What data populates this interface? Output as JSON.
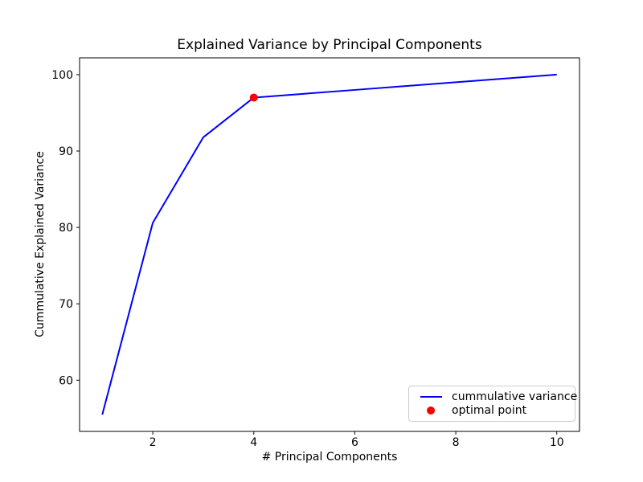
{
  "chart_data": {
    "type": "line",
    "title": "Explained Variance by Principal Components",
    "xlabel": "# Principal Components",
    "ylabel": "Cummulative Explained Variance",
    "x": [
      1,
      2,
      3,
      4,
      5,
      6,
      7,
      8,
      9,
      10
    ],
    "series": [
      {
        "name": "cummulative variance",
        "type": "line",
        "color": "#0000ff",
        "values": [
          55.5,
          80.6,
          91.8,
          97.0,
          97.5,
          98.0,
          98.5,
          99.0,
          99.5,
          100.0
        ]
      },
      {
        "name": "optimal point",
        "type": "scatter",
        "color": "#ff0000",
        "points": [
          {
            "x": 4,
            "y": 97.0
          }
        ]
      }
    ],
    "xlim": [
      0.55,
      10.45
    ],
    "ylim": [
      53.3,
      102.2
    ],
    "xticks": [
      2,
      4,
      6,
      8,
      10
    ],
    "yticks": [
      60,
      70,
      80,
      90,
      100
    ],
    "grid": false,
    "legend_position": "lower right",
    "axis_color": "#000000",
    "text_color": "#000000",
    "background": "#ffffff"
  },
  "legend": {
    "items": [
      {
        "label": "cummulative variance",
        "swatch": "line",
        "color": "#0000ff"
      },
      {
        "label": "optimal point",
        "swatch": "dot",
        "color": "#ff0000"
      }
    ]
  }
}
